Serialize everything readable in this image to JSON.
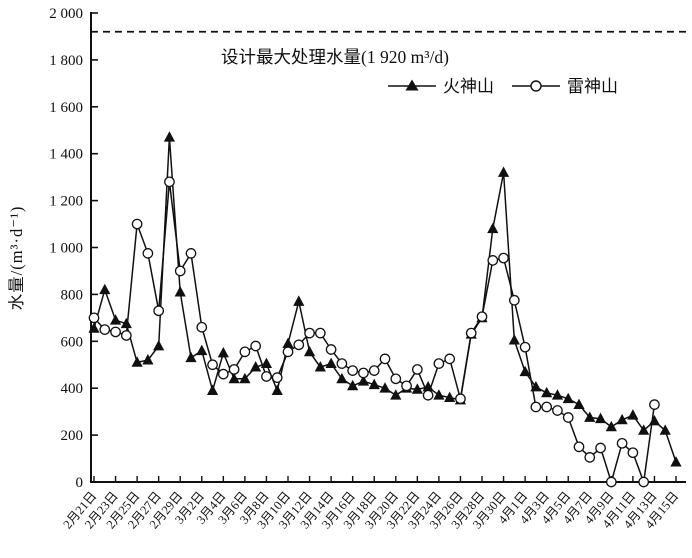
{
  "colors": {
    "background": "#ffffff",
    "ink": "#101010",
    "marker_fill_open": "#ffffff"
  },
  "chart_data": {
    "type": "line",
    "title": "",
    "xlabel": "",
    "ylabel": "水量/(m³·d⁻¹)",
    "ylim": [
      0,
      2000
    ],
    "ytick_step": 200,
    "ytick_labels": [
      "0",
      "200",
      "400",
      "600",
      "800",
      "1 000",
      "1 200",
      "1 400",
      "1 600",
      "1 800",
      "2 000"
    ],
    "xtick_every": 2,
    "grid": false,
    "legend_position": "top-inside",
    "annotation": {
      "text": "设计最大处理水量(1 920 m³/d)",
      "value": 1920,
      "line_style": "dashed"
    },
    "categories": [
      "2月21日",
      "2月22日",
      "2月23日",
      "2月24日",
      "2月25日",
      "2月26日",
      "2月27日",
      "2月28日",
      "2月29日",
      "3月1日",
      "3月2日",
      "3月3日",
      "3月4日",
      "3月5日",
      "3月6日",
      "3月7日",
      "3月8日",
      "3月9日",
      "3月10日",
      "3月11日",
      "3月12日",
      "3月13日",
      "3月14日",
      "3月15日",
      "3月16日",
      "3月17日",
      "3月18日",
      "3月19日",
      "3月20日",
      "3月21日",
      "3月22日",
      "3月23日",
      "3月24日",
      "3月25日",
      "3月26日",
      "3月27日",
      "3月28日",
      "3月29日",
      "3月30日",
      "3月31日",
      "4月1日",
      "4月2日",
      "4月3日",
      "4月4日",
      "4月5日",
      "4月6日",
      "4月7日",
      "4月8日",
      "4月9日",
      "4月10日",
      "4月11日",
      "4月12日",
      "4月13日",
      "4月14日",
      "4月15日"
    ],
    "series": [
      {
        "name": "火神山",
        "marker": "filled-triangle",
        "color": "#101010",
        "values": [
          655,
          820,
          690,
          675,
          510,
          520,
          580,
          1470,
          810,
          530,
          560,
          390,
          550,
          440,
          440,
          490,
          505,
          390,
          590,
          770,
          555,
          490,
          505,
          440,
          410,
          430,
          415,
          400,
          370,
          400,
          395,
          405,
          370,
          360,
          350,
          630,
          700,
          1080,
          1320,
          605,
          470,
          405,
          380,
          370,
          355,
          330,
          275,
          270,
          235,
          265,
          285,
          220,
          260,
          220,
          85
        ]
      },
      {
        "name": "雷神山",
        "marker": "open-circle",
        "color": "#101010",
        "values": [
          700,
          650,
          640,
          625,
          1100,
          975,
          730,
          1280,
          900,
          975,
          660,
          500,
          460,
          480,
          555,
          580,
          450,
          445,
          555,
          585,
          635,
          635,
          565,
          505,
          475,
          465,
          475,
          525,
          440,
          410,
          480,
          370,
          505,
          525,
          355,
          635,
          705,
          945,
          955,
          775,
          575,
          320,
          320,
          305,
          275,
          150,
          105,
          145,
          0,
          165,
          125,
          0,
          330,
          null,
          null
        ]
      }
    ]
  }
}
